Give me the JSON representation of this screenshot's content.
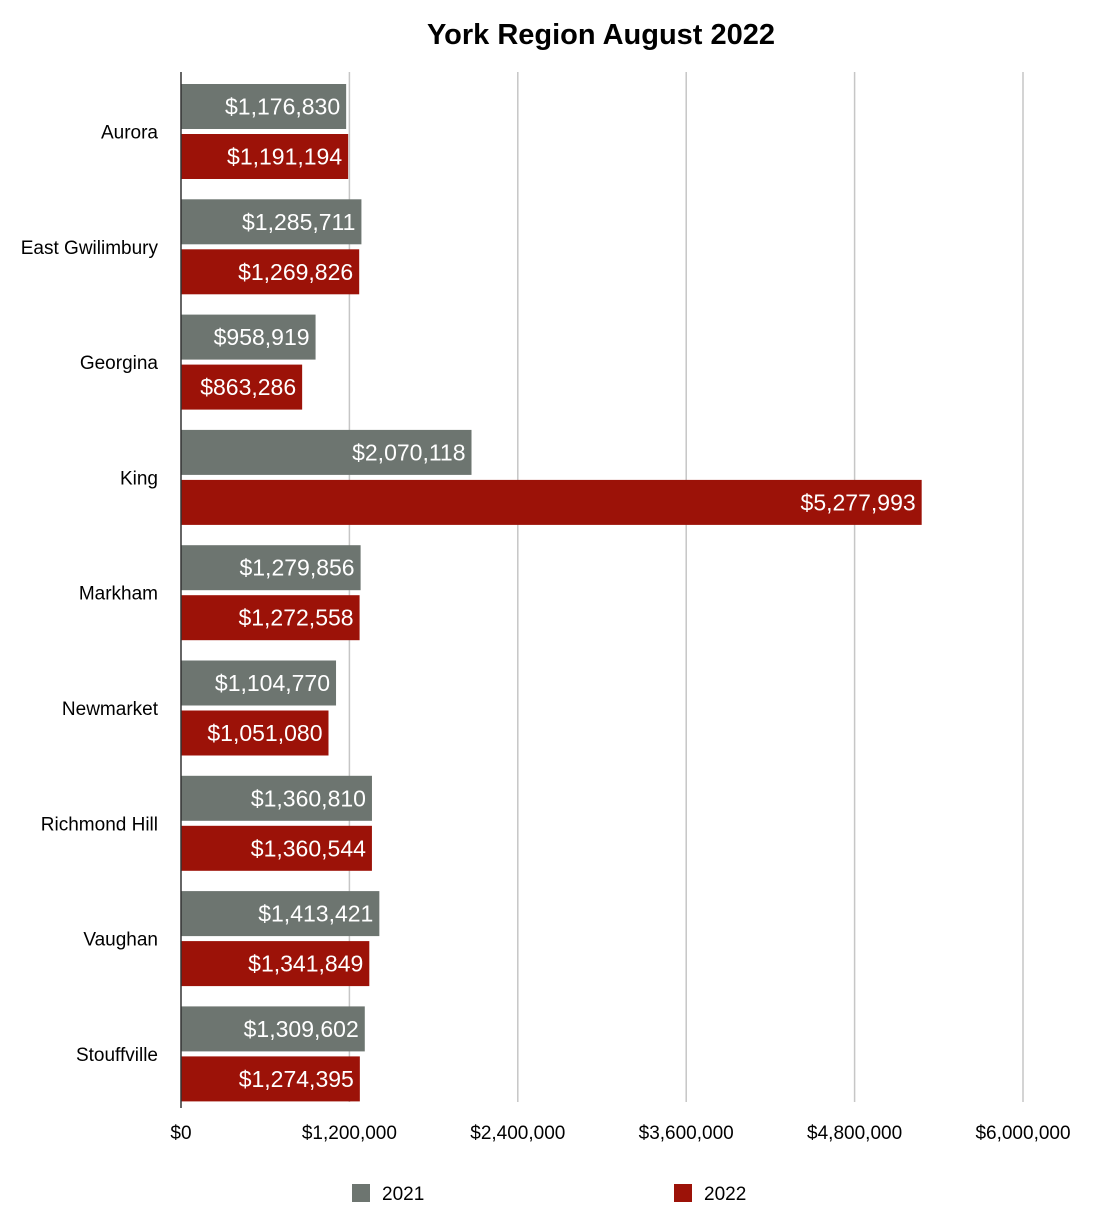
{
  "chart_data": {
    "type": "bar",
    "orientation": "horizontal",
    "title": "York Region August 2022",
    "xlabel": "",
    "ylabel": "",
    "xlim": [
      0,
      6000000
    ],
    "x_ticks": [
      0,
      1200000,
      2400000,
      3600000,
      4800000,
      6000000
    ],
    "x_tick_labels": [
      "$0",
      "$1,200,000",
      "$2,400,000",
      "$3,600,000",
      "$4,800,000",
      "$6,000,000"
    ],
    "grid": "vertical",
    "legend_position": "bottom",
    "categories": [
      "Aurora",
      "East Gwilimbury",
      "Georgina",
      "King",
      "Markham",
      "Newmarket",
      "Richmond Hill",
      "Vaughan",
      "Stouffville"
    ],
    "series": [
      {
        "name": "2021",
        "color": "#6d7570",
        "values": [
          1176830,
          1285711,
          958919,
          2070118,
          1279856,
          1104770,
          1360810,
          1413421,
          1309602
        ],
        "labels": [
          "$1,176,830",
          "$1,285,711",
          "$958,919",
          "$2,070,118",
          "$1,279,856",
          "$1,104,770",
          "$1,360,810",
          "$1,413,421",
          "$1,309,602"
        ]
      },
      {
        "name": "2022",
        "color": "#9c1208",
        "values": [
          1191194,
          1269826,
          863286,
          5277993,
          1272558,
          1051080,
          1360544,
          1341849,
          1274395
        ],
        "labels": [
          "$1,191,194",
          "$1,269,826",
          "$863,286",
          "$5,277,993",
          "$1,272,558",
          "$1,051,080",
          "$1,360,544",
          "$1,341,849",
          "$1,274,395"
        ]
      }
    ]
  }
}
